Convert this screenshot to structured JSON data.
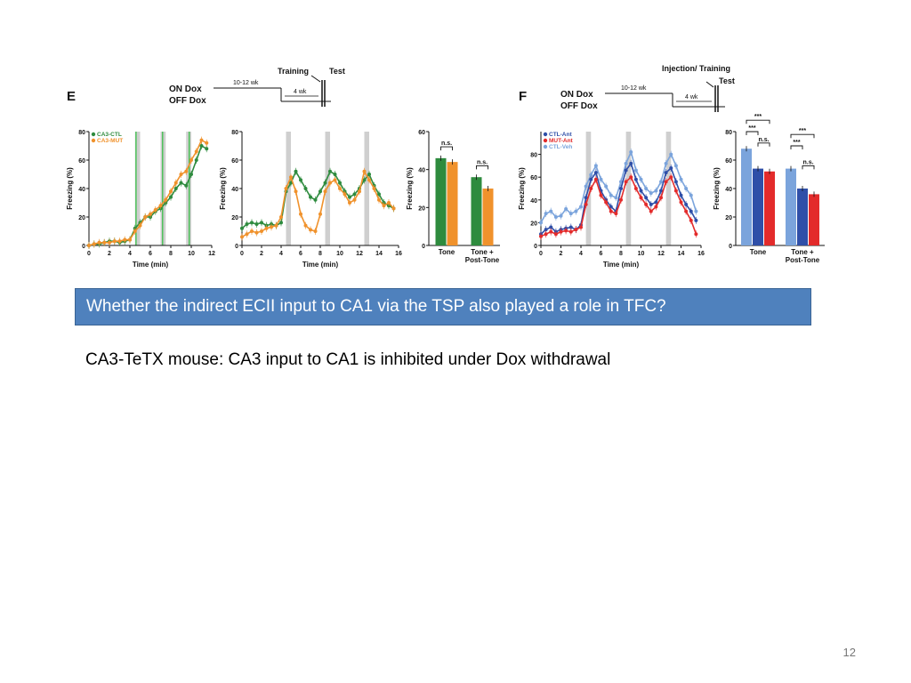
{
  "slide": {
    "callout": "Whether the indirect ECII input to CA1 via the TSP also played a role in TFC?",
    "note": "CA3-TeTX mouse: CA3 input to CA1 is inhibited under Dox withdrawal",
    "page_number": "12"
  },
  "panel_e": {
    "letter": "E",
    "schematic": {
      "on": "ON Dox",
      "off": "OFF Dox",
      "period1": "10-12 wk",
      "training": "Training",
      "test": "Test",
      "period2": "4 wk"
    },
    "legend": [
      "CA3-CTL",
      "CA3-MUT"
    ],
    "colors": {
      "ctl": "#2e8b3e",
      "mut": "#f0922c"
    }
  },
  "panel_f": {
    "letter": "F",
    "schematic": {
      "on": "ON Dox",
      "off": "OFF Dox",
      "period1": "10-12 wk",
      "training": "Injection/ Training",
      "test": "Test",
      "period2": "4 wk"
    },
    "legend": [
      "CTL-Ant",
      "MUT-Ant",
      "CTL-Veh"
    ],
    "colors": {
      "ctl_ant": "#2f4fa8",
      "mut_ant": "#e32b2b",
      "ctl_veh": "#7ba4dc"
    }
  },
  "chart_data": [
    {
      "id": "e-training",
      "type": "line",
      "ylabel": "Freezing (%)",
      "xlabel": "Time (min)",
      "xlim": [
        0,
        12
      ],
      "ylim": [
        0,
        80
      ],
      "xticks": [
        0,
        2,
        4,
        6,
        8,
        10,
        12
      ],
      "yticks": [
        0,
        20,
        40,
        60,
        80
      ],
      "shaded_x": [
        4.5,
        7,
        9.5
      ],
      "vlines_x": [
        4.6,
        7.2,
        9.8
      ],
      "series": [
        {
          "name": "CA3-CTL",
          "color": "#2e8b3e",
          "x": [
            0,
            0.5,
            1,
            1.5,
            2,
            2.5,
            3,
            3.5,
            4,
            4.5,
            5,
            5.5,
            6,
            6.5,
            7,
            7.5,
            8,
            8.5,
            9,
            9.5,
            10,
            10.5,
            11,
            11.5
          ],
          "y": [
            0,
            1,
            1,
            2,
            3,
            3,
            2,
            3,
            4,
            12,
            16,
            20,
            20,
            24,
            26,
            30,
            34,
            40,
            44,
            42,
            50,
            60,
            70,
            68
          ]
        },
        {
          "name": "CA3-MUT",
          "color": "#f0922c",
          "x": [
            0,
            0.5,
            1,
            1.5,
            2,
            2.5,
            3,
            3.5,
            4,
            4.5,
            5,
            5.5,
            6,
            6.5,
            7,
            7.5,
            8,
            8.5,
            9,
            9.5,
            10,
            10.5,
            11,
            11.5
          ],
          "y": [
            0,
            1,
            2,
            2,
            2,
            3,
            3,
            4,
            4,
            10,
            14,
            20,
            22,
            25,
            28,
            32,
            38,
            44,
            50,
            52,
            60,
            66,
            74,
            72
          ]
        }
      ]
    },
    {
      "id": "e-test",
      "type": "line",
      "ylabel": "Freezing (%)",
      "xlabel": "Time (min)",
      "xlim": [
        0,
        16
      ],
      "ylim": [
        0,
        80
      ],
      "xticks": [
        0,
        2,
        4,
        6,
        8,
        10,
        12,
        14,
        16
      ],
      "yticks": [
        0,
        20,
        40,
        60,
        80
      ],
      "shaded_x": [
        4.5,
        8.5,
        12.5
      ],
      "series": [
        {
          "name": "CA3-CTL",
          "color": "#2e8b3e",
          "x": [
            0,
            0.5,
            1,
            1.5,
            2,
            2.5,
            3,
            3.5,
            4,
            4.5,
            5,
            5.5,
            6,
            6.5,
            7,
            7.5,
            8,
            8.5,
            9,
            9.5,
            10,
            10.5,
            11,
            11.5,
            12,
            12.5,
            13,
            13.5,
            14,
            14.5,
            15,
            15.5
          ],
          "y": [
            12,
            15,
            16,
            15,
            16,
            14,
            15,
            14,
            16,
            38,
            44,
            52,
            46,
            40,
            34,
            32,
            38,
            44,
            52,
            50,
            44,
            38,
            34,
            36,
            40,
            46,
            50,
            42,
            36,
            30,
            28,
            26
          ]
        },
        {
          "name": "CA3-MUT",
          "color": "#f0922c",
          "x": [
            0,
            0.5,
            1,
            1.5,
            2,
            2.5,
            3,
            3.5,
            4,
            4.5,
            5,
            5.5,
            6,
            6.5,
            7,
            7.5,
            8,
            8.5,
            9,
            9.5,
            10,
            10.5,
            11,
            11.5,
            12,
            12.5,
            13,
            13.5,
            14,
            14.5,
            15,
            15.5
          ],
          "y": [
            6,
            8,
            10,
            9,
            10,
            12,
            13,
            14,
            20,
            40,
            48,
            38,
            22,
            14,
            11,
            10,
            22,
            38,
            44,
            46,
            40,
            36,
            30,
            32,
            38,
            52,
            46,
            40,
            32,
            28,
            30,
            26
          ]
        }
      ]
    },
    {
      "id": "e-bar",
      "type": "bar",
      "ylabel": "Freezing (%)",
      "ylim": [
        0,
        60
      ],
      "yticks": [
        0,
        20,
        40,
        60
      ],
      "categories": [
        "Tone",
        "Tone + Post-Tone"
      ],
      "series": [
        {
          "name": "CA3-CTL",
          "color": "#2e8b3e",
          "values": [
            46,
            36
          ]
        },
        {
          "name": "CA3-MUT",
          "color": "#f0922c",
          "values": [
            44,
            30
          ]
        }
      ],
      "annotations": [
        "n.s.",
        "n.s."
      ]
    },
    {
      "id": "f-test",
      "type": "line",
      "ylabel": "Freezing (%)",
      "xlabel": "Time (min)",
      "xlim": [
        0,
        16
      ],
      "ylim": [
        0,
        100
      ],
      "xticks": [
        0,
        2,
        4,
        6,
        8,
        10,
        12,
        14,
        16
      ],
      "yticks": [
        0,
        20,
        40,
        60,
        80
      ],
      "shaded_x": [
        4.5,
        8.5,
        12.5
      ],
      "series": [
        {
          "name": "CTL-Veh",
          "color": "#7ba4dc",
          "x": [
            0,
            0.5,
            1,
            1.5,
            2,
            2.5,
            3,
            3.5,
            4,
            4.5,
            5,
            5.5,
            6,
            6.5,
            7,
            7.5,
            8,
            8.5,
            9,
            9.5,
            10,
            10.5,
            11,
            11.5,
            12,
            12.5,
            13,
            13.5,
            14,
            14.5,
            15,
            15.5
          ],
          "y": [
            20,
            28,
            30,
            25,
            26,
            32,
            28,
            30,
            34,
            52,
            62,
            70,
            58,
            52,
            44,
            42,
            56,
            72,
            82,
            66,
            58,
            50,
            46,
            48,
            56,
            72,
            80,
            70,
            58,
            50,
            44,
            30
          ]
        },
        {
          "name": "CTL-Ant",
          "color": "#2f4fa8",
          "x": [
            0,
            0.5,
            1,
            1.5,
            2,
            2.5,
            3,
            3.5,
            4,
            4.5,
            5,
            5.5,
            6,
            6.5,
            7,
            7.5,
            8,
            8.5,
            9,
            9.5,
            10,
            10.5,
            11,
            11.5,
            12,
            12.5,
            13,
            13.5,
            14,
            14.5,
            15,
            15.5
          ],
          "y": [
            10,
            14,
            16,
            12,
            14,
            15,
            16,
            14,
            18,
            42,
            58,
            64,
            48,
            40,
            34,
            30,
            50,
            66,
            72,
            58,
            48,
            42,
            36,
            38,
            48,
            64,
            68,
            56,
            44,
            36,
            30,
            22
          ]
        },
        {
          "name": "MUT-Ant",
          "color": "#e32b2b",
          "x": [
            0,
            0.5,
            1,
            1.5,
            2,
            2.5,
            3,
            3.5,
            4,
            4.5,
            5,
            5.5,
            6,
            6.5,
            7,
            7.5,
            8,
            8.5,
            9,
            9.5,
            10,
            10.5,
            11,
            11.5,
            12,
            12.5,
            13,
            13.5,
            14,
            14.5,
            15,
            15.5
          ],
          "y": [
            8,
            10,
            12,
            10,
            12,
            13,
            12,
            14,
            16,
            36,
            50,
            58,
            44,
            38,
            30,
            28,
            40,
            56,
            60,
            50,
            42,
            36,
            30,
            34,
            42,
            56,
            60,
            48,
            38,
            30,
            22,
            10
          ]
        }
      ]
    },
    {
      "id": "f-bar",
      "type": "bar",
      "ylabel": "Freezing (%)",
      "ylim": [
        0,
        80
      ],
      "yticks": [
        0,
        20,
        40,
        60,
        80
      ],
      "categories": [
        "Tone",
        "Tone + Post-Tone"
      ],
      "series": [
        {
          "name": "CTL-Veh",
          "color": "#7ba4dc",
          "values": [
            68,
            54
          ]
        },
        {
          "name": "CTL-Ant",
          "color": "#2f4fa8",
          "values": [
            54,
            40
          ]
        },
        {
          "name": "MUT-Ant",
          "color": "#e32b2b",
          "values": [
            52,
            36
          ]
        }
      ],
      "annotations": [
        "***",
        "***",
        "n.s.",
        "***",
        "***",
        "n.s."
      ]
    }
  ]
}
